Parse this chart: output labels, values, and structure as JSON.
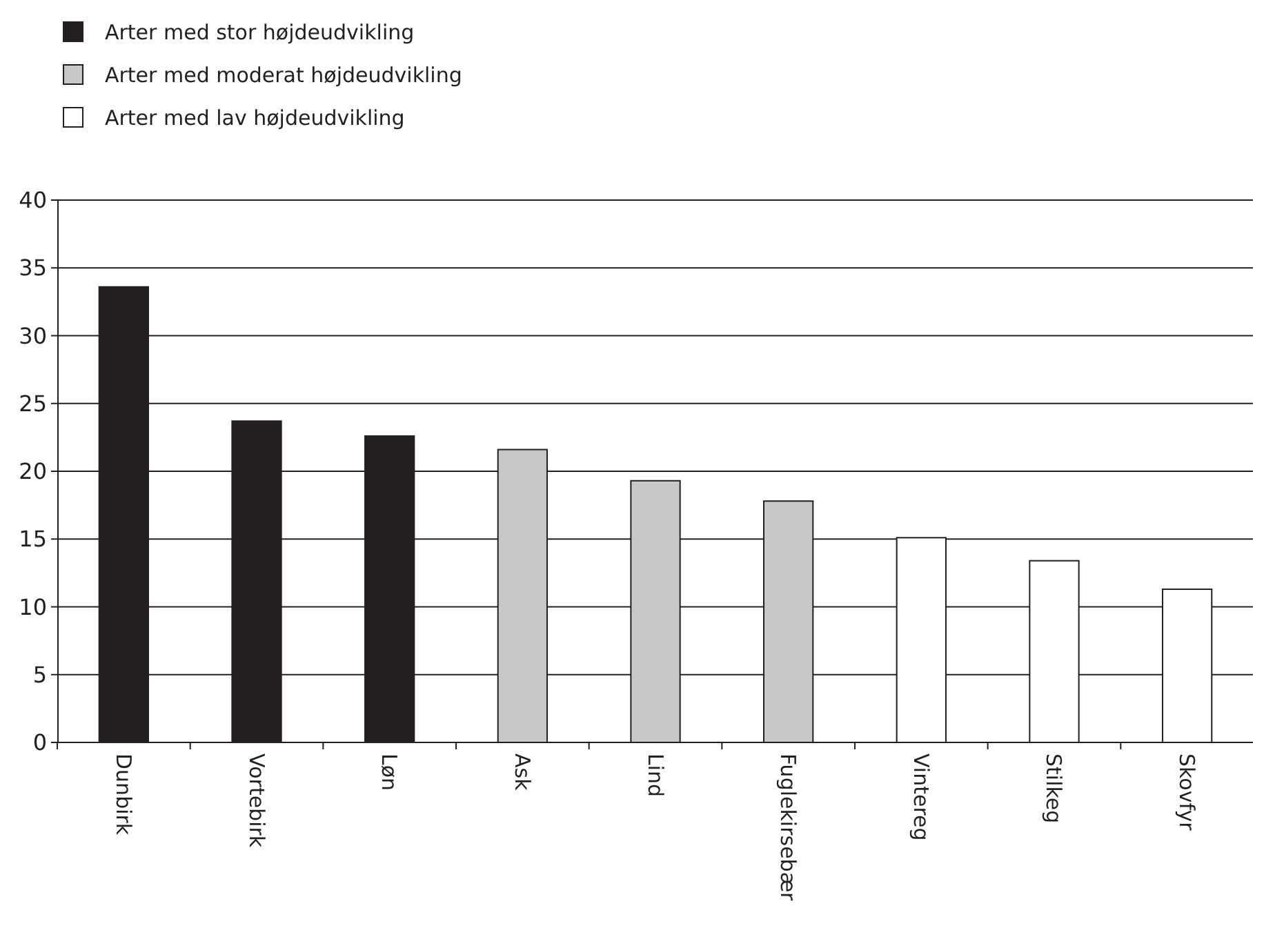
{
  "chart_data": {
    "type": "bar",
    "categories": [
      "Dunbirk",
      "Vortebirk",
      "Løn",
      "Ask",
      "Lind",
      "Fuglekirsebær",
      "Vintereg",
      "Stilkeg",
      "Skovfyr"
    ],
    "series": [
      {
        "name": "Arter med stor højdeudvikling",
        "color": "#231f20",
        "values": [
          33.6,
          23.7,
          22.6,
          null,
          null,
          null,
          null,
          null,
          null
        ]
      },
      {
        "name": "Arter med moderat højdeudvikling",
        "color": "#c8c8c8",
        "values": [
          null,
          null,
          null,
          21.6,
          19.3,
          17.8,
          null,
          null,
          null
        ]
      },
      {
        "name": "Arter med lav højdeudvikling",
        "color": "#ffffff",
        "values": [
          null,
          null,
          null,
          null,
          null,
          null,
          15.1,
          13.4,
          11.3
        ]
      }
    ],
    "ylim": [
      0,
      40
    ],
    "yticks": [
      0,
      5,
      10,
      15,
      20,
      25,
      30,
      35,
      40
    ],
    "grid": "y",
    "legend": "top left"
  }
}
